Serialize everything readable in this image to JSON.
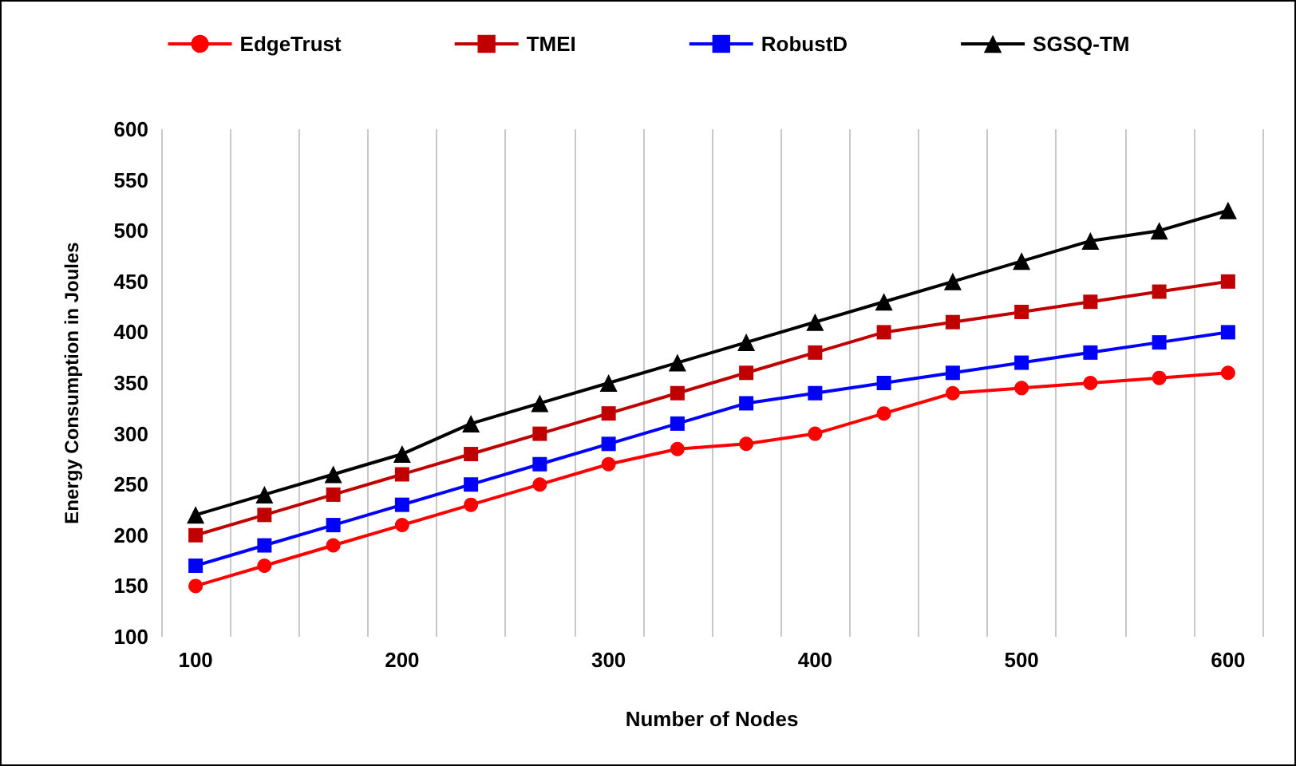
{
  "chart_data": {
    "type": "line",
    "xlabel": "Number of Nodes",
    "ylabel": "Energy Consumption in Joules",
    "categories": [
      "100",
      null,
      null,
      "200",
      null,
      null,
      "300",
      null,
      null,
      "400",
      null,
      null,
      "500",
      null,
      null,
      "600"
    ],
    "series": [
      {
        "name": "EdgeTrust",
        "color": "#ff0000",
        "marker": "circle",
        "values": [
          150,
          170,
          190,
          210,
          230,
          250,
          270,
          285,
          290,
          300,
          320,
          340,
          345,
          350,
          355,
          360
        ]
      },
      {
        "name": "TMEI",
        "color": "#c00000",
        "marker": "square",
        "values": [
          200,
          220,
          240,
          260,
          280,
          300,
          320,
          340,
          360,
          380,
          400,
          410,
          420,
          430,
          440,
          450
        ]
      },
      {
        "name": "RobustD",
        "color": "#0000ff",
        "marker": "square",
        "values": [
          170,
          190,
          210,
          230,
          250,
          270,
          290,
          310,
          330,
          340,
          350,
          360,
          370,
          380,
          390,
          400
        ]
      },
      {
        "name": "SGSQ-TM",
        "color": "#000000",
        "marker": "triangle",
        "values": [
          220,
          240,
          260,
          280,
          310,
          330,
          350,
          370,
          390,
          410,
          430,
          450,
          470,
          490,
          500,
          520
        ]
      }
    ],
    "ylim": [
      100,
      600
    ],
    "yticks": [
      100,
      150,
      200,
      250,
      300,
      350,
      400,
      450,
      500,
      550,
      600
    ],
    "grid": "x",
    "legend": "top",
    "line_style": "solid"
  }
}
